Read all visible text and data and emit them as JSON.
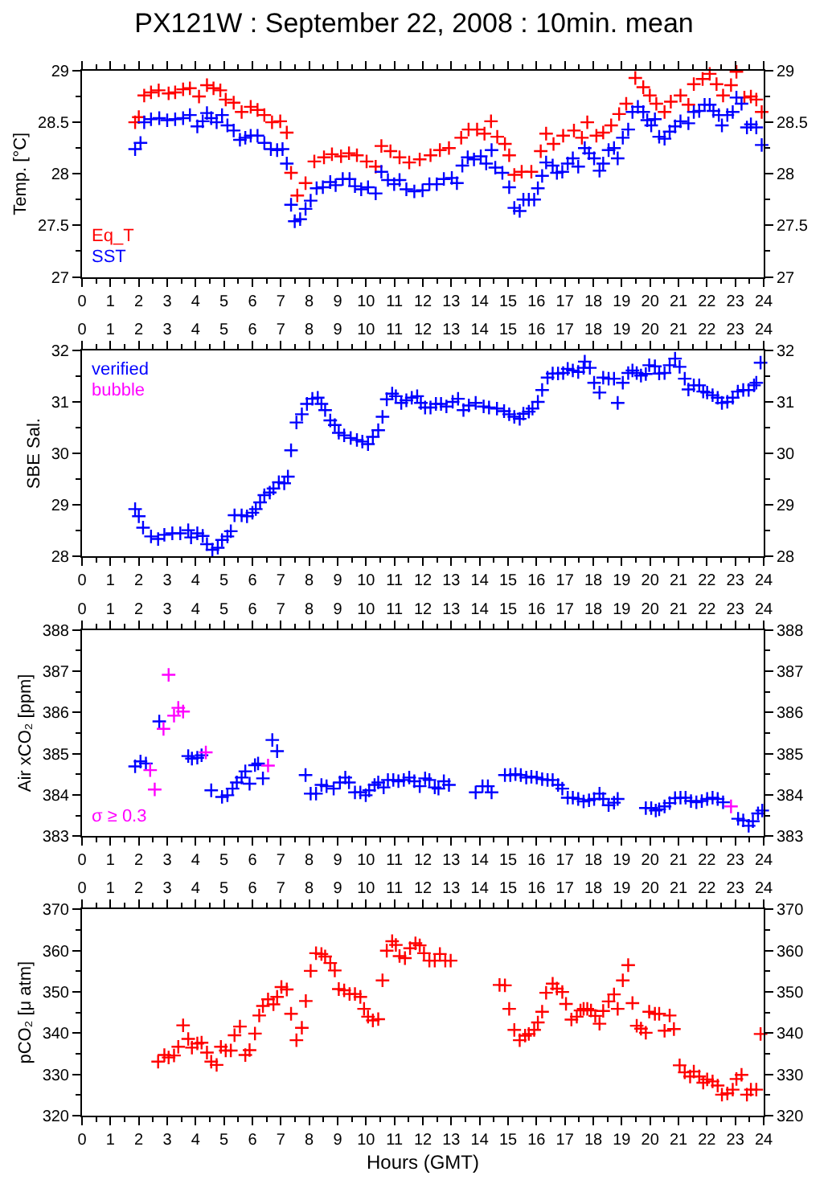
{
  "chart_data": [
    {
      "type": "scatter",
      "title": "PX121W : September 22, 2008 : 10min. mean",
      "ylabel": "Temp. [°C]",
      "marker": "cross",
      "legend": "bottom left",
      "xlim": [
        0,
        24
      ],
      "xticks": [
        0,
        1,
        2,
        3,
        4,
        5,
        6,
        7,
        8,
        9,
        10,
        11,
        12,
        13,
        14,
        15,
        16,
        17,
        18,
        19,
        20,
        21,
        22,
        23,
        24
      ],
      "ylim": [
        27,
        29
      ],
      "yticks": [
        27,
        27.5,
        28,
        28.5,
        29
      ],
      "y2lim": [
        27,
        29
      ],
      "y2ticks": [
        27,
        27.5,
        28,
        28.5,
        29
      ],
      "series": [
        {
          "name": "Eq_T",
          "color": "#ff0000",
          "x": [
            1.87,
            2.0,
            2.19,
            2.43,
            2.7,
            3.05,
            3.28,
            3.56,
            3.8,
            4.12,
            4.4,
            4.63,
            4.87,
            5.06,
            5.34,
            5.62,
            5.94,
            6.18,
            6.42,
            6.69,
            6.98,
            7.21,
            7.36,
            7.58,
            7.87,
            8.18,
            8.52,
            8.8,
            9.12,
            9.4,
            9.68,
            10.02,
            10.34,
            10.54,
            10.86,
            11.18,
            11.52,
            11.89,
            12.27,
            12.6,
            12.92,
            13.35,
            13.61,
            13.91,
            14.17,
            14.4,
            14.62,
            14.89,
            15.04,
            15.22,
            15.48,
            15.82,
            16.15,
            16.34,
            16.6,
            16.94,
            17.32,
            17.6,
            17.79,
            18.11,
            18.35,
            18.63,
            18.91,
            19.16,
            19.48,
            19.76,
            19.99,
            20.22,
            20.51,
            20.73,
            21.07,
            21.35,
            21.54,
            21.85,
            22.1,
            22.34,
            22.57,
            22.85,
            23.04,
            23.32,
            23.55,
            23.74,
            23.93
          ],
          "values": [
            28.5,
            28.55,
            28.76,
            28.79,
            28.81,
            28.78,
            28.79,
            28.82,
            28.83,
            28.75,
            28.86,
            28.83,
            28.81,
            28.72,
            28.69,
            28.6,
            28.65,
            28.62,
            28.57,
            28.5,
            28.51,
            28.4,
            28.01,
            27.79,
            27.91,
            28.12,
            28.16,
            28.19,
            28.17,
            28.2,
            28.18,
            28.12,
            28.07,
            28.27,
            28.22,
            28.16,
            28.11,
            28.14,
            28.18,
            28.23,
            28.25,
            28.35,
            28.43,
            28.43,
            28.39,
            28.51,
            28.36,
            28.29,
            28.18,
            27.99,
            28.02,
            28.02,
            28.22,
            28.39,
            28.29,
            28.37,
            28.42,
            28.35,
            28.5,
            28.37,
            28.4,
            28.47,
            28.58,
            28.68,
            28.93,
            28.84,
            28.76,
            28.68,
            28.6,
            28.7,
            28.76,
            28.67,
            28.87,
            28.92,
            28.97,
            28.87,
            28.76,
            28.86,
            28.99,
            28.74,
            28.75,
            28.72,
            28.6
          ]
        },
        {
          "name": "SST",
          "color": "#0000ff",
          "x": [
            1.87,
            2.06,
            2.19,
            2.43,
            2.72,
            3.0,
            3.28,
            3.56,
            3.8,
            4.06,
            4.25,
            4.4,
            4.55,
            4.74,
            4.93,
            5.12,
            5.34,
            5.56,
            5.75,
            5.94,
            6.18,
            6.42,
            6.65,
            6.87,
            7.06,
            7.21,
            7.36,
            7.49,
            7.68,
            7.87,
            8.05,
            8.26,
            8.48,
            8.74,
            8.93,
            9.18,
            9.42,
            9.61,
            9.83,
            10.07,
            10.34,
            10.54,
            10.77,
            10.99,
            11.18,
            11.42,
            11.7,
            11.99,
            12.23,
            12.49,
            12.74,
            13.02,
            13.2,
            13.39,
            13.58,
            13.8,
            14.04,
            14.23,
            14.42,
            14.55,
            14.8,
            15.04,
            15.22,
            15.41,
            15.54,
            15.73,
            15.92,
            16.05,
            16.2,
            16.34,
            16.57,
            16.72,
            16.91,
            17.1,
            17.28,
            17.47,
            17.7,
            17.85,
            18.03,
            18.22,
            18.35,
            18.54,
            18.73,
            18.86,
            19.04,
            19.23,
            19.38,
            19.57,
            19.76,
            19.9,
            20.04,
            20.17,
            20.32,
            20.51,
            20.69,
            20.88,
            21.07,
            21.35,
            21.54,
            21.73,
            21.92,
            22.1,
            22.23,
            22.42,
            22.53,
            22.72,
            22.91,
            23.04,
            23.22,
            23.41,
            23.55,
            23.74,
            23.93
          ],
          "values": [
            28.24,
            28.3,
            28.5,
            28.53,
            28.54,
            28.52,
            28.53,
            28.54,
            28.57,
            28.46,
            28.51,
            28.59,
            28.54,
            28.5,
            28.57,
            28.47,
            28.42,
            28.33,
            28.35,
            28.37,
            28.37,
            28.3,
            28.24,
            28.23,
            28.24,
            28.1,
            27.7,
            27.54,
            27.56,
            27.66,
            27.74,
            27.86,
            27.87,
            27.92,
            27.89,
            27.95,
            27.95,
            27.88,
            27.85,
            27.87,
            27.81,
            28.02,
            27.94,
            27.9,
            27.94,
            27.85,
            27.83,
            27.84,
            27.9,
            27.9,
            27.95,
            27.96,
            27.91,
            28.08,
            28.16,
            28.14,
            28.17,
            28.1,
            28.23,
            28.06,
            28.01,
            27.87,
            27.67,
            27.64,
            27.75,
            27.75,
            27.75,
            27.86,
            27.98,
            28.11,
            28.08,
            28.01,
            28.02,
            28.1,
            28.15,
            28.07,
            28.25,
            28.2,
            28.15,
            28.03,
            28.1,
            28.23,
            28.25,
            28.15,
            28.35,
            28.43,
            28.6,
            28.65,
            28.6,
            28.52,
            28.47,
            28.53,
            28.36,
            28.34,
            28.41,
            28.46,
            28.51,
            28.49,
            28.6,
            28.61,
            28.67,
            28.67,
            28.61,
            28.57,
            28.47,
            28.57,
            28.6,
            28.74,
            28.68,
            28.45,
            28.48,
            28.45,
            28.28
          ]
        }
      ]
    },
    {
      "type": "scatter",
      "ylabel": "SBE Sal.",
      "marker": "cross",
      "legend": "top left",
      "xlim": [
        0,
        24
      ],
      "xticks": [
        0,
        1,
        2,
        3,
        4,
        5,
        6,
        7,
        8,
        9,
        10,
        11,
        12,
        13,
        14,
        15,
        16,
        17,
        18,
        19,
        20,
        21,
        22,
        23,
        24
      ],
      "x2lim": [
        0,
        24
      ],
      "x2ticks": [
        0,
        1,
        2,
        3,
        4,
        5,
        6,
        7,
        8,
        9,
        10,
        11,
        12,
        13,
        14,
        15,
        16,
        17,
        18,
        19,
        20,
        21,
        22,
        23,
        24
      ],
      "ylim": [
        28,
        32
      ],
      "yticks": [
        28,
        29,
        30,
        31,
        32
      ],
      "y2lim": [
        28,
        32
      ],
      "y2ticks": [
        28,
        29,
        30,
        31,
        32
      ],
      "series": [
        {
          "name": "verified",
          "color": "#0000ff",
          "x": [
            1.87,
            2.0,
            2.15,
            2.43,
            2.68,
            2.9,
            3.18,
            3.46,
            3.74,
            3.84,
            4.06,
            4.25,
            4.4,
            4.59,
            4.78,
            4.93,
            5.12,
            5.24,
            5.37,
            5.62,
            5.81,
            6.0,
            6.12,
            6.27,
            6.42,
            6.61,
            6.74,
            6.93,
            7.12,
            7.25,
            7.36,
            7.55,
            7.74,
            7.92,
            8.11,
            8.3,
            8.43,
            8.56,
            8.74,
            8.9,
            9.04,
            9.23,
            9.46,
            9.68,
            9.87,
            10.07,
            10.24,
            10.43,
            10.58,
            10.73,
            10.92,
            11.05,
            11.24,
            11.42,
            11.61,
            11.8,
            11.93,
            12.08,
            12.27,
            12.46,
            12.64,
            12.83,
            13.05,
            13.24,
            13.43,
            13.62,
            13.86,
            14.14,
            14.33,
            14.61,
            14.86,
            15.04,
            15.22,
            15.41,
            15.54,
            15.73,
            15.86,
            16.05,
            16.2,
            16.39,
            16.57,
            16.76,
            16.94,
            17.1,
            17.28,
            17.47,
            17.66,
            17.7,
            17.88,
            18.03,
            18.22,
            18.35,
            18.54,
            18.73,
            18.86,
            19.04,
            19.23,
            19.38,
            19.53,
            19.68,
            19.85,
            19.97,
            20.17,
            20.32,
            20.51,
            20.69,
            20.88,
            21.04,
            21.22,
            21.35,
            21.54,
            21.73,
            21.87,
            22.01,
            22.2,
            22.38,
            22.53,
            22.72,
            22.91,
            23.09,
            23.28,
            23.47,
            23.66,
            23.74,
            23.89
          ],
          "values": [
            28.92,
            28.78,
            28.56,
            28.39,
            28.34,
            28.42,
            28.45,
            28.45,
            28.51,
            28.37,
            28.45,
            28.4,
            28.24,
            28.13,
            28.17,
            28.32,
            28.39,
            28.49,
            28.8,
            28.8,
            28.78,
            28.85,
            28.92,
            29.05,
            29.19,
            29.24,
            29.32,
            29.44,
            29.42,
            29.55,
            30.06,
            30.6,
            30.76,
            30.96,
            31.06,
            31.08,
            30.96,
            30.84,
            30.64,
            30.55,
            30.4,
            30.35,
            30.3,
            30.26,
            30.23,
            30.18,
            30.32,
            30.45,
            30.71,
            31.05,
            31.16,
            31.11,
            30.98,
            31.03,
            31.08,
            31.11,
            30.98,
            30.89,
            30.89,
            30.96,
            30.96,
            30.91,
            31.0,
            31.06,
            30.84,
            30.93,
            30.98,
            30.91,
            30.89,
            30.87,
            30.82,
            30.76,
            30.71,
            30.67,
            30.77,
            30.81,
            30.87,
            31.0,
            31.23,
            31.47,
            31.55,
            31.55,
            31.56,
            31.64,
            31.61,
            31.58,
            31.66,
            31.78,
            31.66,
            31.37,
            31.18,
            31.47,
            31.45,
            31.45,
            30.98,
            31.37,
            31.56,
            31.61,
            31.56,
            31.51,
            31.54,
            31.71,
            31.69,
            31.55,
            31.56,
            31.71,
            31.84,
            31.68,
            31.45,
            31.24,
            31.32,
            31.32,
            31.2,
            31.18,
            31.13,
            31.08,
            30.98,
            31.0,
            31.08,
            31.2,
            31.23,
            31.23,
            31.32,
            31.37,
            31.76
          ]
        },
        {
          "name": "bubble",
          "color": "#ff00ff"
        }
      ]
    },
    {
      "type": "scatter",
      "ylabel": "Air xCO₂ [ppm]",
      "marker": "cross",
      "legend": "bottom left",
      "xlim": [
        0,
        24
      ],
      "xticks": [
        0,
        1,
        2,
        3,
        4,
        5,
        6,
        7,
        8,
        9,
        10,
        11,
        12,
        13,
        14,
        15,
        16,
        17,
        18,
        19,
        20,
        21,
        22,
        23,
        24
      ],
      "x2lim": [
        0,
        24
      ],
      "x2ticks": [
        0,
        1,
        2,
        3,
        4,
        5,
        6,
        7,
        8,
        9,
        10,
        11,
        12,
        13,
        14,
        15,
        16,
        17,
        18,
        19,
        20,
        21,
        22,
        23,
        24
      ],
      "ylim": [
        383,
        388
      ],
      "yticks": [
        383,
        384,
        385,
        386,
        387,
        388
      ],
      "y2lim": [
        383,
        388
      ],
      "y2ticks": [
        383,
        384,
        385,
        386,
        387,
        388
      ],
      "series": [
        {
          "color": "#0000ff",
          "x": [
            1.87,
            2.06,
            2.25,
            2.72,
            3.74,
            3.87,
            4.06,
            4.21,
            4.55,
            4.93,
            5.12,
            5.3,
            5.45,
            5.62,
            5.75,
            5.9,
            6.09,
            6.2,
            6.37,
            6.7,
            6.87,
            7.87,
            8.05,
            8.24,
            8.43,
            8.61,
            8.86,
            9.08,
            9.27,
            9.4,
            9.61,
            9.8,
            9.99,
            10.11,
            10.3,
            10.43,
            10.62,
            10.77,
            10.96,
            11.14,
            11.33,
            11.52,
            11.7,
            11.89,
            12.08,
            12.23,
            12.42,
            12.55,
            12.74,
            12.92,
            13.86,
            14.1,
            14.29,
            14.42,
            14.89,
            15.08,
            15.26,
            15.45,
            15.64,
            15.82,
            16.01,
            16.2,
            16.39,
            16.57,
            16.76,
            16.91,
            17.1,
            17.28,
            17.47,
            17.66,
            17.85,
            18.03,
            18.22,
            18.35,
            18.54,
            18.73,
            18.86,
            19.85,
            20.04,
            20.2,
            20.32,
            20.51,
            20.69,
            20.88,
            21.07,
            21.25,
            21.44,
            21.63,
            21.82,
            22.01,
            22.2,
            22.38,
            22.57,
            23.1,
            23.28,
            23.47,
            23.62,
            23.8,
            23.95
          ],
          "values": [
            384.69,
            384.81,
            384.76,
            385.78,
            384.94,
            384.88,
            384.9,
            384.96,
            384.11,
            383.95,
            383.99,
            384.15,
            384.3,
            384.42,
            384.57,
            384.27,
            384.72,
            384.76,
            384.4,
            385.33,
            385.06,
            384.48,
            384.03,
            384.03,
            384.24,
            384.21,
            384.15,
            384.3,
            384.42,
            384.3,
            384.06,
            384.06,
            383.99,
            384.11,
            384.24,
            384.3,
            384.18,
            384.36,
            384.36,
            384.33,
            384.36,
            384.42,
            384.33,
            384.21,
            384.4,
            384.36,
            384.18,
            384.15,
            384.33,
            384.24,
            384.06,
            384.21,
            384.21,
            384.06,
            384.48,
            384.48,
            384.5,
            384.48,
            384.42,
            384.44,
            384.42,
            384.38,
            384.36,
            384.36,
            384.24,
            384.15,
            383.93,
            383.93,
            383.9,
            383.84,
            383.87,
            383.9,
            384.03,
            383.9,
            383.75,
            383.81,
            383.9,
            383.68,
            383.68,
            383.62,
            383.65,
            383.72,
            383.8,
            383.92,
            383.93,
            383.93,
            383.85,
            383.82,
            383.85,
            383.9,
            383.93,
            383.9,
            383.82,
            383.42,
            383.38,
            383.25,
            383.36,
            383.55,
            383.62
          ]
        },
        {
          "name": "σ ≥ 0.3",
          "color": "#ff00ff",
          "x": [
            2.4,
            2.56,
            2.87,
            3.05,
            3.24,
            3.39,
            3.56,
            4.36,
            6.55,
            22.85
          ],
          "values": [
            384.6,
            384.13,
            385.6,
            386.91,
            385.92,
            386.11,
            386.02,
            385.03,
            384.71,
            383.72
          ]
        }
      ]
    },
    {
      "type": "scatter",
      "ylabel": "pCO₂ [μ atm]",
      "xlabel": "Hours (GMT)",
      "marker": "cross",
      "xlim": [
        0,
        24
      ],
      "xticks": [
        0,
        1,
        2,
        3,
        4,
        5,
        6,
        7,
        8,
        9,
        10,
        11,
        12,
        13,
        14,
        15,
        16,
        17,
        18,
        19,
        20,
        21,
        22,
        23,
        24
      ],
      "x2lim": [
        0,
        24
      ],
      "x2ticks": [
        0,
        1,
        2,
        3,
        4,
        5,
        6,
        7,
        8,
        9,
        10,
        11,
        12,
        13,
        14,
        15,
        16,
        17,
        18,
        19,
        20,
        21,
        22,
        23,
        24
      ],
      "ylim": [
        320,
        370
      ],
      "yticks": [
        320,
        330,
        340,
        350,
        360,
        370
      ],
      "y2lim": [
        320,
        370
      ],
      "y2ticks": [
        320,
        330,
        340,
        350,
        360,
        370
      ],
      "series": [
        {
          "color": "#ff0000",
          "x": [
            2.68,
            2.9,
            3.05,
            3.24,
            3.39,
            3.56,
            3.74,
            3.87,
            4.06,
            4.21,
            4.4,
            4.55,
            4.74,
            4.89,
            5.06,
            5.24,
            5.37,
            5.56,
            5.75,
            5.9,
            6.09,
            6.24,
            6.37,
            6.55,
            6.74,
            6.87,
            7.02,
            7.21,
            7.36,
            7.55,
            7.74,
            7.88,
            8.05,
            8.24,
            8.43,
            8.56,
            8.74,
            8.9,
            9.04,
            9.23,
            9.42,
            9.61,
            9.8,
            9.93,
            10.07,
            10.24,
            10.43,
            10.58,
            10.73,
            10.92,
            11.05,
            11.18,
            11.37,
            11.55,
            11.74,
            11.89,
            12.04,
            12.23,
            12.42,
            12.6,
            12.79,
            12.98,
            14.7,
            14.89,
            15.04,
            15.22,
            15.41,
            15.6,
            15.73,
            15.92,
            16.05,
            16.2,
            16.34,
            16.57,
            16.72,
            16.91,
            17.04,
            17.23,
            17.42,
            17.55,
            17.66,
            17.79,
            17.92,
            18.07,
            18.22,
            18.35,
            18.54,
            18.73,
            18.86,
            19.04,
            19.23,
            19.38,
            19.53,
            19.68,
            19.85,
            19.97,
            20.17,
            20.32,
            20.51,
            20.69,
            20.84,
            21.04,
            21.22,
            21.41,
            21.54,
            21.73,
            21.87,
            22.01,
            22.2,
            22.38,
            22.53,
            22.72,
            22.91,
            23.04,
            23.22,
            23.41,
            23.55,
            23.74,
            23.89
          ],
          "values": [
            333.1,
            334.7,
            334.1,
            334.6,
            336.7,
            341.9,
            338.6,
            336.5,
            337.5,
            337.7,
            335.3,
            333.1,
            332.3,
            336.7,
            335.8,
            335.8,
            339.5,
            341.6,
            334.7,
            335.9,
            339.9,
            344.3,
            346.6,
            348.2,
            347.0,
            348.8,
            351.2,
            350.6,
            344.7,
            338.3,
            341.3,
            347.8,
            355.1,
            359.4,
            359.2,
            358.6,
            357.0,
            355.2,
            350.7,
            350.4,
            349.5,
            349.5,
            348.8,
            345.9,
            344.0,
            343.1,
            343.4,
            352.8,
            360.0,
            362.3,
            361.4,
            358.7,
            358.2,
            360.6,
            361.8,
            361.3,
            359.4,
            357.6,
            357.6,
            359.2,
            357.6,
            357.6,
            351.7,
            351.6,
            345.9,
            340.8,
            338.3,
            339.4,
            339.8,
            340.8,
            342.6,
            345.2,
            349.8,
            352.0,
            350.8,
            350.0,
            347.1,
            343.3,
            344.0,
            345.5,
            345.9,
            345.9,
            345.5,
            344.2,
            342.3,
            345.4,
            347.7,
            349.4,
            345.9,
            352.8,
            356.5,
            347.3,
            341.8,
            341.1,
            340.1,
            345.2,
            344.7,
            344.7,
            340.6,
            344.3,
            341.0,
            332.2,
            330.5,
            329.5,
            330.7,
            329.5,
            328.0,
            328.8,
            328.3,
            327.3,
            325.1,
            325.4,
            326.3,
            328.9,
            329.9,
            325.1,
            326.3,
            326.3,
            339.8
          ]
        }
      ]
    }
  ]
}
